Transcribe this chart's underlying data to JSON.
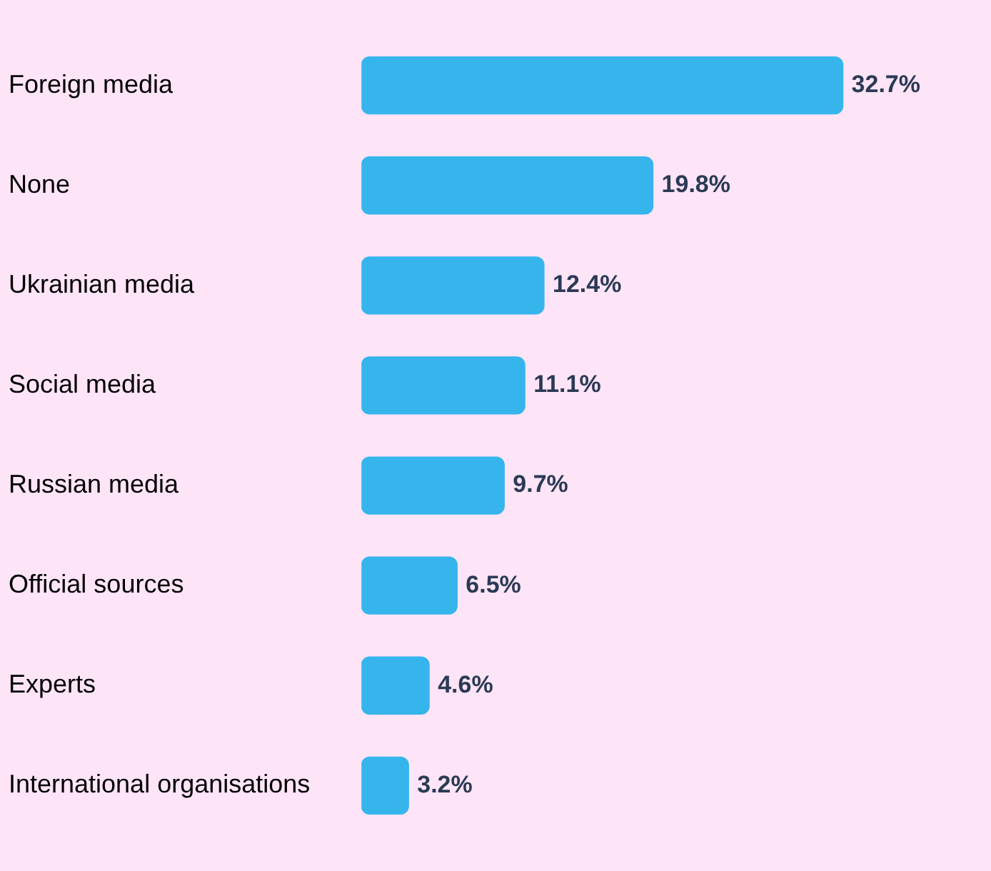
{
  "chart_data": {
    "type": "bar",
    "orientation": "horizontal",
    "categories": [
      "Foreign media",
      "None",
      "Ukrainian media",
      "Social media",
      "Russian media",
      "Official sources",
      "Experts",
      "International organisations"
    ],
    "values": [
      32.7,
      19.8,
      12.4,
      11.1,
      9.7,
      6.5,
      4.6,
      3.2
    ],
    "value_labels": [
      "32.7%",
      "19.8%",
      "12.4%",
      "11.1%",
      "9.7%",
      "6.5%",
      "4.6%",
      "3.2%"
    ],
    "color": "#35b5ec"
  }
}
